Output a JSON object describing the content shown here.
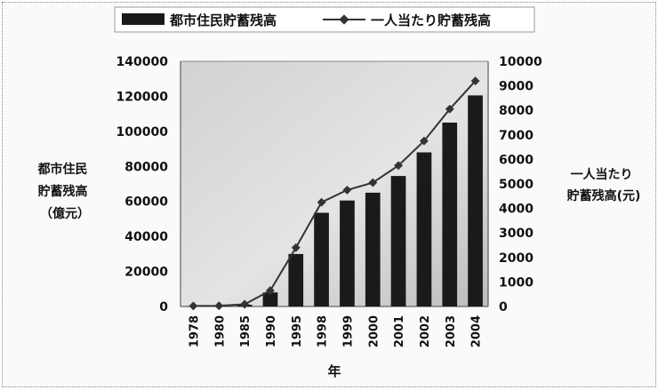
{
  "chart_data": {
    "type": "bar+line",
    "title": "",
    "categories": [
      "1978",
      "1980",
      "1985",
      "1990",
      "1995",
      "1998",
      "1999",
      "2000",
      "2001",
      "2002",
      "2003",
      "2004"
    ],
    "series": [
      {
        "name": "都市住民貯蓄残高",
        "type": "bar",
        "axis": "left",
        "values": [
          200,
          300,
          1000,
          8000,
          30000,
          53500,
          60500,
          65000,
          74500,
          88000,
          105000,
          120500
        ]
      },
      {
        "name": "一人当たり貯蓄残高",
        "type": "line",
        "axis": "right",
        "values": [
          20,
          30,
          90,
          650,
          2400,
          4250,
          4750,
          5050,
          5750,
          6750,
          8050,
          9200
        ]
      }
    ],
    "y_left": {
      "label_lines": [
        "都市住民",
        "貯蓄残高",
        "（億元）"
      ],
      "ylim": [
        0,
        140000
      ],
      "ticks": [
        "0",
        "20000",
        "40000",
        "60000",
        "80000",
        "100000",
        "120000",
        "140000"
      ]
    },
    "y_right": {
      "label_lines": [
        "一人当たり",
        "貯蓄残高(元)"
      ],
      "ylim": [
        0,
        10000
      ],
      "ticks": [
        "0",
        "1000",
        "2000",
        "3000",
        "4000",
        "5000",
        "6000",
        "7000",
        "8000",
        "9000",
        "10000"
      ]
    },
    "xlabel": "年",
    "legend_position": "top",
    "grid": false,
    "colors": {
      "bar": "#1a1a1a",
      "line": "#333333",
      "plot_bg_light": "#e6e6e6",
      "plot_bg_dark": "#bdbdbd"
    }
  }
}
